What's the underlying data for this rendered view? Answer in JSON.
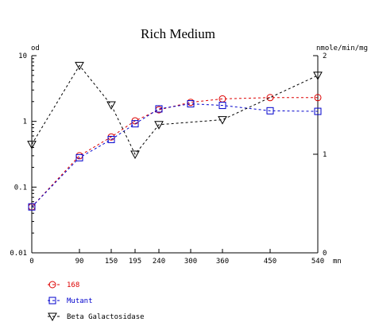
{
  "chart_data": {
    "type": "line",
    "title": "Rich Medium",
    "x": [
      0,
      90,
      150,
      195,
      240,
      300,
      360,
      450,
      540
    ],
    "x_ticks": [
      "0",
      "90",
      "150",
      "195",
      "240",
      "300",
      "360",
      "450",
      "540"
    ],
    "x_unit": "mn",
    "xlim": [
      0,
      540
    ],
    "y_left": {
      "label": "od",
      "scale": "log",
      "lim": [
        0.01,
        10
      ],
      "ticks": [
        {
          "value": 10,
          "label": "10"
        },
        {
          "value": 1,
          "label": "1"
        },
        {
          "value": 0.1,
          "label": "0.1"
        },
        {
          "value": 0.01,
          "label": "0.01"
        }
      ]
    },
    "y_right": {
      "label": "nmole/min/mg",
      "scale": "linear",
      "lim": [
        0,
        2
      ],
      "ticks": [
        {
          "value": 2,
          "label": "2"
        },
        {
          "value": 1,
          "label": "1"
        },
        {
          "value": 0,
          "label": "0"
        }
      ]
    },
    "series": [
      {
        "name": "168",
        "axis": "left",
        "marker": "circle",
        "color": "#dd0000",
        "x": [
          0,
          90,
          150,
          195,
          240,
          300,
          360,
          450,
          540
        ],
        "y": [
          0.05,
          0.3,
          0.58,
          1.02,
          1.5,
          1.95,
          2.2,
          2.3,
          2.3
        ]
      },
      {
        "name": "Mutant",
        "axis": "left",
        "marker": "square",
        "color": "#0000cc",
        "x": [
          0,
          90,
          150,
          195,
          240,
          300,
          360,
          450,
          540
        ],
        "y": [
          0.05,
          0.28,
          0.53,
          0.92,
          1.55,
          1.85,
          1.75,
          1.45,
          1.42
        ]
      },
      {
        "name": "Beta Galactosidase",
        "axis": "right",
        "marker": "triangle-down",
        "color": "#000000",
        "x": [
          0,
          90,
          150,
          195,
          240,
          300,
          360,
          450,
          540
        ],
        "y": [
          1.1,
          1.9,
          1.5,
          1.0,
          1.3,
          null,
          1.35,
          null,
          1.8
        ]
      }
    ],
    "legend": [
      {
        "label": "168",
        "marker": "circle",
        "color": "#dd0000"
      },
      {
        "label": "Mutant",
        "marker": "square",
        "color": "#0000cc"
      },
      {
        "label": "Beta Galactosidase",
        "marker": "triangle-down",
        "color": "#000000"
      }
    ],
    "legend_placement": "bottom-left",
    "grid": false,
    "line_style": "dashed"
  }
}
